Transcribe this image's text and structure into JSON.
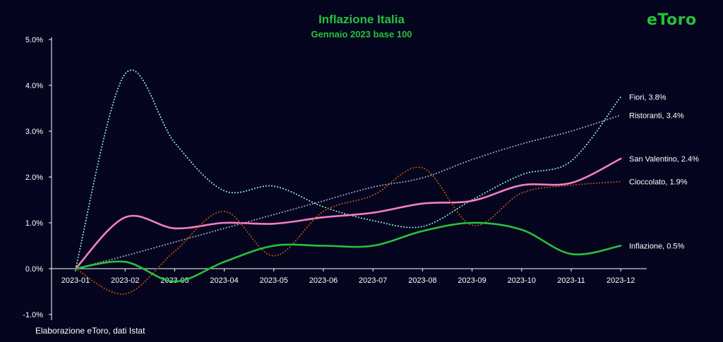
{
  "title": "Inflazione Italia",
  "subtitle": "Gennaio 2023 base 100",
  "logo_text": "eToro",
  "source": "Elaborazione eToro, dati Istat",
  "colors": {
    "background": "#05051f",
    "title": "#27c23a",
    "axis": "#ffffff"
  },
  "chart_data": {
    "type": "line",
    "categories": [
      "2023-01",
      "2023-02",
      "2023-03",
      "2023-04",
      "2023-05",
      "2023-06",
      "2023-07",
      "2023-08",
      "2023-09",
      "2023-10",
      "2023-11",
      "2023-12"
    ],
    "ylim": [
      -1.0,
      5.0
    ],
    "yticks": [
      -1.0,
      0.0,
      1.0,
      2.0,
      3.0,
      4.0,
      5.0
    ],
    "ytick_labels": [
      "-1.0%",
      "0.0%",
      "1.0%",
      "2.0%",
      "3.0%",
      "4.0%",
      "5.0%"
    ],
    "y_format": "percent",
    "grid": false,
    "series": [
      {
        "name": "Fiori",
        "end_label": "Fiori, 3.8%",
        "color": "#8ee8cf",
        "style": "dotted",
        "width": 2,
        "values": [
          0.0,
          4.25,
          2.75,
          1.7,
          1.8,
          1.35,
          1.05,
          0.92,
          1.5,
          2.05,
          2.35,
          3.75
        ]
      },
      {
        "name": "Ristoranti",
        "end_label": "Ristoranti, 3.4%",
        "color": "#a8a4c8",
        "style": "dotted",
        "width": 2,
        "values": [
          0.0,
          0.28,
          0.58,
          0.88,
          1.18,
          1.48,
          1.78,
          1.98,
          2.38,
          2.72,
          3.0,
          3.35
        ]
      },
      {
        "name": "San Valentino",
        "end_label": "San Valentino, 2.4%",
        "color": "#f57fc5",
        "style": "solid",
        "width": 2.6,
        "values": [
          0.0,
          1.12,
          0.88,
          1.0,
          0.98,
          1.12,
          1.22,
          1.42,
          1.48,
          1.82,
          1.87,
          2.4
        ]
      },
      {
        "name": "Cioccolato",
        "end_label": "Cioccolato, 1.9%",
        "color": "#b55410",
        "style": "dotted",
        "width": 2,
        "values": [
          0.0,
          -0.55,
          0.38,
          1.25,
          0.28,
          1.25,
          1.6,
          2.2,
          0.95,
          1.65,
          1.82,
          1.9
        ]
      },
      {
        "name": "Inflazione",
        "end_label": "Inflazione, 0.5%",
        "color": "#27c23a",
        "style": "solid",
        "width": 2.6,
        "values": [
          0.0,
          0.15,
          -0.28,
          0.15,
          0.5,
          0.5,
          0.5,
          0.82,
          1.0,
          0.85,
          0.32,
          0.5
        ]
      }
    ]
  }
}
